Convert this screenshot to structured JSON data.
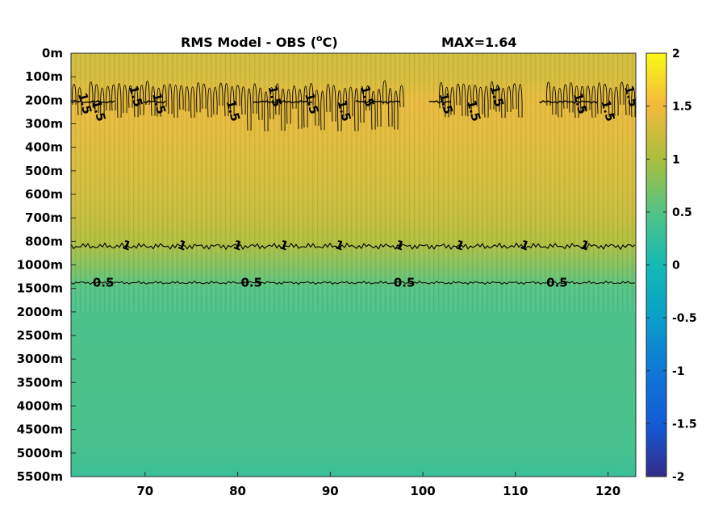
{
  "chart_data": {
    "type": "heatmap",
    "title": "RMS Model - OBS (",
    "title_sup": "o",
    "title_unit": "C)",
    "max_label": "MAX=1.64",
    "xlim": [
      62,
      123
    ],
    "x_ticks": [
      70,
      80,
      90,
      100,
      110,
      120
    ],
    "x_tick_labels": [
      "70",
      "80",
      "90",
      "100",
      "110",
      "120"
    ],
    "y_tick_labels": [
      "0m",
      "100m",
      "200m",
      "300m",
      "400m",
      "500m",
      "600m",
      "700m",
      "800m",
      "1000m",
      "1500m",
      "2000m",
      "2500m",
      "3000m",
      "3500m",
      "4000m",
      "4500m",
      "5000m",
      "5500m"
    ],
    "y_direction": "reversed",
    "colorbar": {
      "colormap": "parula",
      "clim": [
        -2,
        2
      ],
      "ticks": [
        2,
        1.5,
        1,
        0.5,
        0,
        -0.5,
        -1,
        -1.5,
        -2
      ],
      "tick_labels": [
        "2",
        "1.5",
        "1",
        "0.5",
        "0",
        "-0.5",
        "-1",
        "-1.5",
        "-2"
      ]
    },
    "depth_profile": {
      "depths": [
        "0m",
        "100m",
        "200m",
        "300m",
        "400m",
        "500m",
        "600m",
        "700m",
        "800m",
        "1000m",
        "1500m",
        "2000m",
        "2500m",
        "3000m",
        "3500m",
        "4000m",
        "4500m",
        "5000m",
        "5500m"
      ],
      "values": [
        1.25,
        1.28,
        1.42,
        1.4,
        1.35,
        1.3,
        1.25,
        1.18,
        1.05,
        0.78,
        0.5,
        0.45,
        0.44,
        0.45,
        0.45,
        0.43,
        0.42,
        0.4,
        0.3
      ]
    },
    "contours": [
      {
        "level": "1.5",
        "depth": "200m"
      },
      {
        "level": "1",
        "depth": "800m"
      },
      {
        "level": "0.5",
        "depth": "1500m"
      }
    ],
    "contour_labels": [
      {
        "text": "0.5",
        "x": 65.5
      },
      {
        "text": "0.5",
        "x": 81.5
      },
      {
        "text": "0.5",
        "x": 98
      },
      {
        "text": "0.5",
        "x": 114.5
      },
      {
        "text": "1",
        "x": 68
      },
      {
        "text": "1",
        "x": 74
      },
      {
        "text": "1",
        "x": 80
      },
      {
        "text": "1",
        "x": 85
      },
      {
        "text": "1",
        "x": 91
      },
      {
        "text": "1",
        "x": 97.5
      },
      {
        "text": "1",
        "x": 104
      },
      {
        "text": "1",
        "x": 111
      },
      {
        "text": "1",
        "x": 117.5
      },
      {
        "text": "1.5",
        "x": 63.5
      },
      {
        "text": "1.5",
        "x": 65
      },
      {
        "text": "1.5",
        "x": 69
      },
      {
        "text": "1.5",
        "x": 71.5
      },
      {
        "text": "1.5",
        "x": 79.5
      },
      {
        "text": "1.5",
        "x": 84
      },
      {
        "text": "1.5",
        "x": 88
      },
      {
        "text": "1.5",
        "x": 91.5
      },
      {
        "text": "1.5",
        "x": 94
      },
      {
        "text": "1.5",
        "x": 102.5
      },
      {
        "text": "1.5",
        "x": 105.5
      },
      {
        "text": "1.5",
        "x": 108
      },
      {
        "text": "1.5",
        "x": 117
      },
      {
        "text": "1.5",
        "x": 120
      },
      {
        "text": "1.5",
        "x": 122.5
      }
    ]
  }
}
